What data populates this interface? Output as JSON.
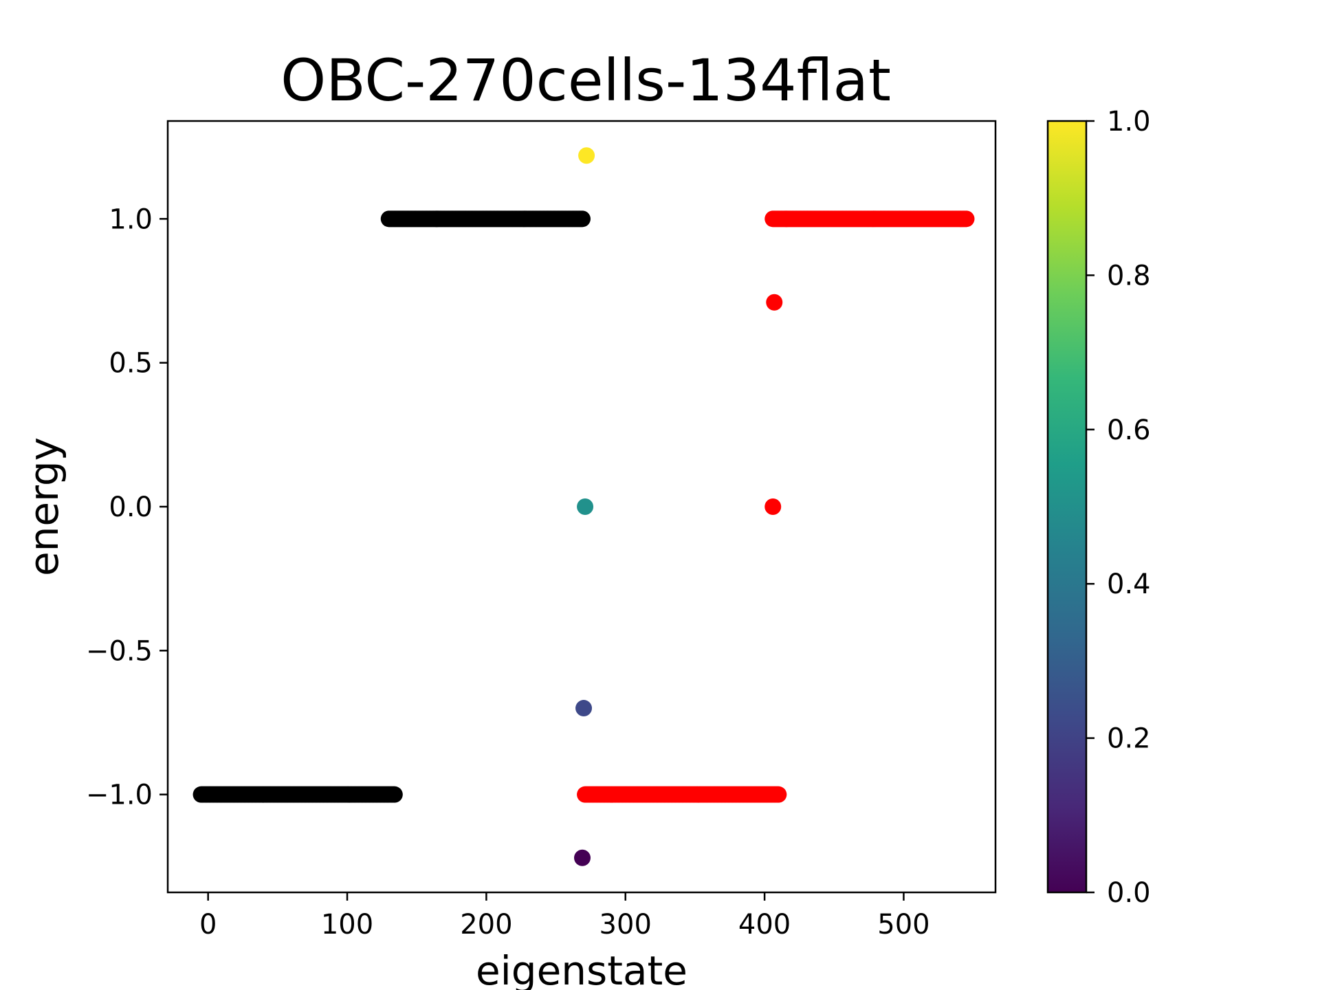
{
  "chart_data": {
    "type": "scatter",
    "title": "OBC-270cells-134flat",
    "xlabel": "eigenstate",
    "ylabel": "energy",
    "xlim": [
      -29,
      566
    ],
    "ylim": [
      -1.34,
      1.34
    ],
    "grid": false,
    "legend": "none",
    "x_ticks": [
      0,
      100,
      200,
      300,
      400,
      500
    ],
    "x_tick_labels": [
      "0",
      "100",
      "200",
      "300",
      "400",
      "500"
    ],
    "y_ticks": [
      -1.0,
      -0.5,
      0.0,
      0.5,
      1.0
    ],
    "y_tick_labels": [
      "−1.0",
      "−0.5",
      "0.0",
      "0.5",
      "1.0"
    ],
    "colorbar": {
      "min": 0.0,
      "max": 1.0,
      "ticks": [
        0.0,
        0.2,
        0.4,
        0.6,
        0.8,
        1.0
      ],
      "tick_labels": [
        "0.0",
        "0.2",
        "0.4",
        "0.6",
        "0.8",
        "1.0"
      ],
      "colormap": "viridis",
      "stops": [
        "#440154",
        "#482878",
        "#3e4989",
        "#31688e",
        "#26828e",
        "#1f9e89",
        "#35b779",
        "#6ece58",
        "#b5de2b",
        "#fde725"
      ]
    },
    "series": [
      {
        "color": "#000000",
        "x_range": [
          -5,
          134
        ],
        "y": -1.0
      },
      {
        "color": "#000000",
        "x_range": [
          130,
          269
        ],
        "y": 1.0
      },
      {
        "color": "#ff0000",
        "x_range": [
          271,
          410
        ],
        "y": -1.0
      },
      {
        "color": "#ff0000",
        "x_range": [
          406,
          545
        ],
        "y": 1.0
      }
    ],
    "points": [
      {
        "x": 269,
        "y": -1.22,
        "color": "#440154"
      },
      {
        "x": 270,
        "y": -0.7,
        "color": "#3e4989"
      },
      {
        "x": 271,
        "y": 0.0,
        "color": "#21918c"
      },
      {
        "x": 272,
        "y": 1.22,
        "color": "#fde725"
      },
      {
        "x": 406,
        "y": 0.0,
        "color": "#ff0000"
      },
      {
        "x": 407,
        "y": 0.71,
        "color": "#ff0000"
      }
    ]
  }
}
